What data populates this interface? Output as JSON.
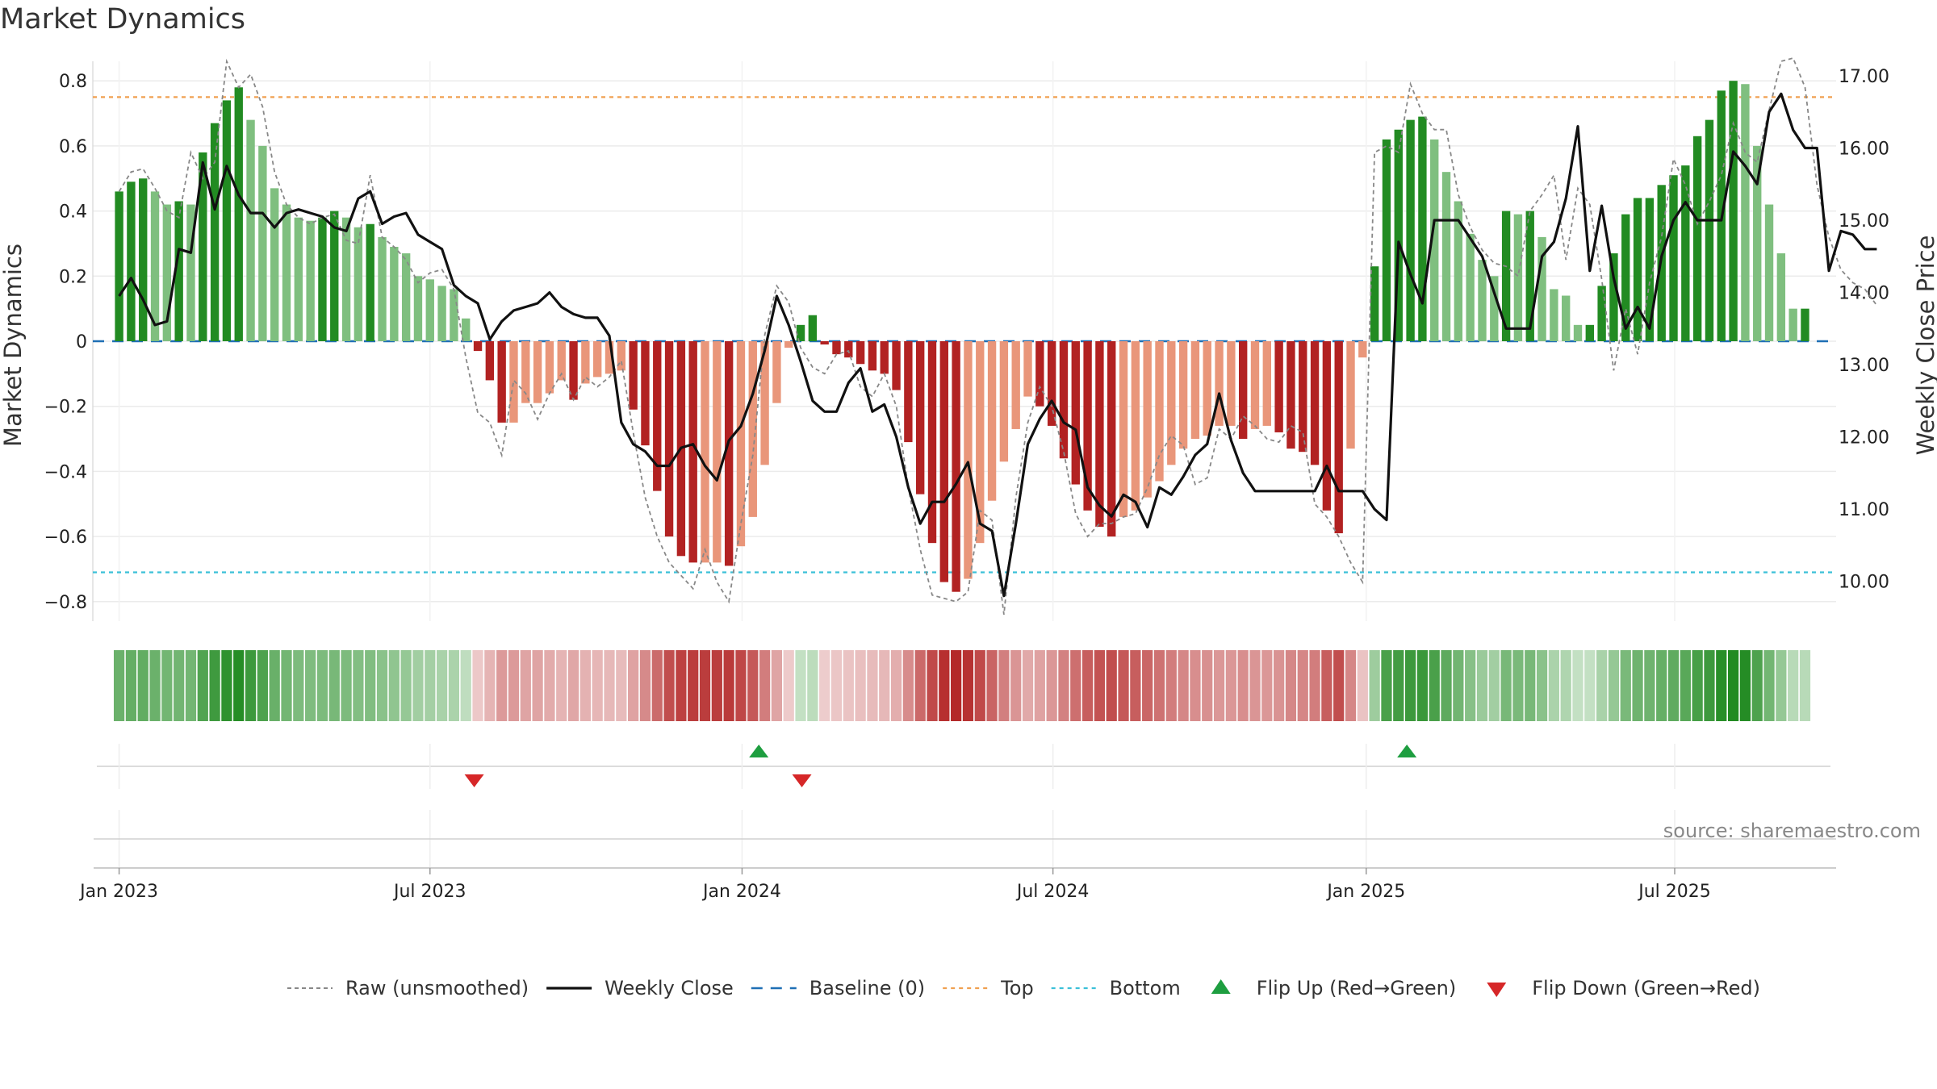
{
  "chart_data": {
    "type": "bar",
    "title": "Market Dynamics",
    "ylabel": "Market Dynamics",
    "y2label": "Weekly Close Price",
    "ylim": [
      -0.86,
      0.86
    ],
    "y2lim": [
      9.45,
      17.2
    ],
    "yticks": [
      -0.8,
      -0.6,
      -0.4,
      -0.2,
      0,
      0.2,
      0.4,
      0.6,
      0.8
    ],
    "y2ticks": [
      10.0,
      11.0,
      12.0,
      13.0,
      14.0,
      15.0,
      16.0,
      17.0
    ],
    "xlim_weeks": [
      -2.2,
      143.6
    ],
    "x_axis": [
      {
        "label": "Jan 2023",
        "week": 0
      },
      {
        "label": "Jul 2023",
        "week": 26
      },
      {
        "label": "Jan 2024",
        "week": 52.1
      },
      {
        "label": "Jul 2024",
        "week": 78.1
      },
      {
        "label": "Jan 2025",
        "week": 104.3
      },
      {
        "label": "Jul 2025",
        "week": 130.1
      }
    ],
    "top_level": 0.75,
    "bottom_level": -0.71,
    "baseline": 0,
    "grid": true,
    "legend_position": "bottom",
    "colors": {
      "green_strong": "#228B22",
      "green_light": "#7FBF7F",
      "red_strong": "#B22222",
      "red_light": "#E9967A",
      "top": "#F0A050",
      "bottom": "#3CC0D8",
      "baseline": "#1F6FB5",
      "close": "#111111",
      "raw": "#888888",
      "flip_up": "#1E9E40",
      "flip_down": "#D62728"
    },
    "smoothed": [
      0.46,
      0.49,
      0.5,
      0.46,
      0.42,
      0.43,
      0.42,
      0.58,
      0.67,
      0.74,
      0.78,
      0.68,
      0.6,
      0.47,
      0.42,
      0.38,
      0.37,
      0.38,
      0.4,
      0.38,
      0.35,
      0.36,
      0.32,
      0.29,
      0.27,
      0.2,
      0.19,
      0.17,
      0.16,
      0.07,
      -0.03,
      -0.12,
      -0.25,
      -0.25,
      -0.19,
      -0.19,
      -0.16,
      -0.12,
      -0.18,
      -0.13,
      -0.11,
      -0.1,
      -0.09,
      -0.21,
      -0.32,
      -0.46,
      -0.6,
      -0.66,
      -0.68,
      -0.68,
      -0.68,
      -0.69,
      -0.63,
      -0.54,
      -0.38,
      -0.19,
      -0.02,
      0.05,
      0.08,
      -0.01,
      -0.04,
      -0.05,
      -0.07,
      -0.09,
      -0.1,
      -0.15,
      -0.31,
      -0.47,
      -0.62,
      -0.74,
      -0.77,
      -0.73,
      -0.62,
      -0.49,
      -0.37,
      -0.27,
      -0.17,
      -0.2,
      -0.26,
      -0.36,
      -0.44,
      -0.52,
      -0.57,
      -0.6,
      -0.54,
      -0.52,
      -0.48,
      -0.43,
      -0.38,
      -0.33,
      -0.3,
      -0.29,
      -0.26,
      -0.26,
      -0.3,
      -0.27,
      -0.26,
      -0.28,
      -0.33,
      -0.34,
      -0.38,
      -0.52,
      -0.59,
      -0.33,
      -0.05,
      0.23,
      0.62,
      0.65,
      0.68,
      0.69,
      0.62,
      0.52,
      0.43,
      0.33,
      0.25,
      0.2,
      0.4,
      0.39,
      0.4,
      0.32,
      0.16,
      0.14,
      0.05,
      0.05,
      0.17,
      0.27,
      0.39,
      0.44,
      0.44,
      0.48,
      0.51,
      0.54,
      0.63,
      0.68,
      0.77,
      0.8,
      0.79,
      0.6,
      0.42,
      0.27,
      0.1,
      0.1
    ],
    "close": [
      13.95,
      14.2,
      13.9,
      13.55,
      13.6,
      14.6,
      14.55,
      15.8,
      15.15,
      15.75,
      15.35,
      15.1,
      15.1,
      14.9,
      15.1,
      15.15,
      15.1,
      15.05,
      14.9,
      14.85,
      15.3,
      15.4,
      14.95,
      15.05,
      15.1,
      14.8,
      14.7,
      14.6,
      14.1,
      13.95,
      13.85,
      13.35,
      13.6,
      13.75,
      13.8,
      13.85,
      14.0,
      13.8,
      13.7,
      13.65,
      13.65,
      13.4,
      12.2,
      11.9,
      11.8,
      11.6,
      11.6,
      11.85,
      11.9,
      11.6,
      11.4,
      11.95,
      12.15,
      12.6,
      13.2,
      13.95,
      13.55,
      13.05,
      12.5,
      12.35,
      12.35,
      12.75,
      12.95,
      12.35,
      12.45,
      12.0,
      11.3,
      10.8,
      11.1,
      11.1,
      11.35,
      11.65,
      10.8,
      10.7,
      9.8,
      10.8,
      11.9,
      12.25,
      12.5,
      12.2,
      12.1,
      11.3,
      11.05,
      10.9,
      11.2,
      11.1,
      10.75,
      11.3,
      11.2,
      11.45,
      11.75,
      11.9,
      12.6,
      11.95,
      11.5,
      11.25,
      11.25,
      11.25,
      11.25,
      11.25,
      11.25,
      11.6,
      11.25,
      11.25,
      11.25,
      11.0,
      10.85,
      14.7,
      14.25,
      13.85,
      15.0,
      15.0,
      15.0,
      14.75,
      14.5,
      14.0,
      13.5,
      13.5,
      13.5,
      14.5,
      14.7,
      15.3,
      16.3,
      14.3,
      15.2,
      14.2,
      13.5,
      13.8,
      13.5,
      14.5,
      15.0,
      15.25,
      15.0,
      15.0,
      15.0,
      15.95,
      15.75,
      15.5,
      16.5,
      16.75,
      16.25,
      16.0,
      16.0,
      14.3,
      14.85,
      14.8,
      14.6,
      14.6
    ],
    "raw": [
      0.46,
      0.52,
      0.53,
      0.47,
      0.4,
      0.38,
      0.58,
      0.5,
      0.55,
      0.86,
      0.78,
      0.82,
      0.72,
      0.52,
      0.42,
      0.38,
      0.36,
      0.38,
      0.39,
      0.31,
      0.3,
      0.51,
      0.32,
      0.29,
      0.25,
      0.18,
      0.21,
      0.22,
      0.16,
      -0.05,
      -0.22,
      -0.25,
      -0.35,
      -0.12,
      -0.16,
      -0.24,
      -0.16,
      -0.1,
      -0.18,
      -0.11,
      -0.14,
      -0.11,
      -0.06,
      -0.28,
      -0.48,
      -0.6,
      -0.68,
      -0.72,
      -0.76,
      -0.64,
      -0.74,
      -0.8,
      -0.56,
      -0.35,
      0.02,
      0.17,
      0.12,
      -0.02,
      -0.08,
      -0.1,
      -0.04,
      -0.03,
      -0.14,
      -0.17,
      -0.1,
      -0.2,
      -0.45,
      -0.64,
      -0.78,
      -0.79,
      -0.8,
      -0.77,
      -0.52,
      -0.55,
      -0.84,
      -0.48,
      -0.25,
      -0.14,
      -0.2,
      -0.34,
      -0.53,
      -0.6,
      -0.56,
      -0.56,
      -0.54,
      -0.53,
      -0.45,
      -0.35,
      -0.29,
      -0.32,
      -0.44,
      -0.42,
      -0.27,
      -0.3,
      -0.23,
      -0.26,
      -0.3,
      -0.31,
      -0.26,
      -0.28,
      -0.5,
      -0.54,
      -0.6,
      -0.68,
      -0.74,
      0.58,
      0.6,
      0.58,
      0.79,
      0.7,
      0.65,
      0.65,
      0.45,
      0.35,
      0.28,
      0.24,
      0.23,
      0.2,
      0.4,
      0.45,
      0.51,
      0.25,
      0.47,
      0.42,
      0.19,
      -0.09,
      0.1,
      -0.04,
      0.18,
      0.32,
      0.56,
      0.48,
      0.36,
      0.43,
      0.51,
      0.67,
      0.58,
      0.55,
      0.71,
      0.86,
      0.87,
      0.78,
      0.48,
      0.32,
      0.22,
      0.18,
      0.16,
      0.11
    ],
    "flip_up_weeks": [
      53.5,
      107.7
    ],
    "flip_down_weeks": [
      29.7,
      57.1
    ],
    "legend": [
      {
        "key": "raw",
        "label": "Raw (unsmoothed)"
      },
      {
        "key": "close",
        "label": "Weekly Close"
      },
      {
        "key": "baseline",
        "label": "Baseline (0)"
      },
      {
        "key": "top",
        "label": "Top"
      },
      {
        "key": "bottom",
        "label": "Bottom"
      },
      {
        "key": "flip_up",
        "label": "Flip Up (Red→Green)"
      },
      {
        "key": "flip_down",
        "label": "Flip Down (Green→Red)"
      }
    ],
    "source": "source: sharemaestro.com"
  }
}
